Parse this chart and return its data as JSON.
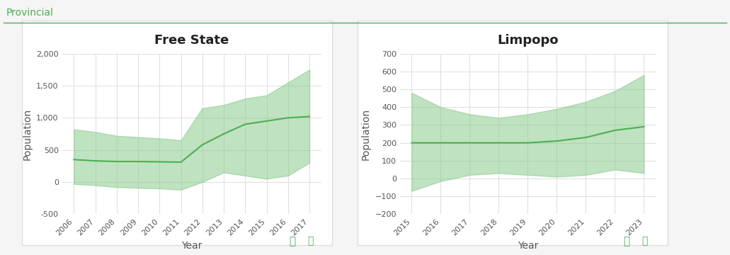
{
  "title_label": "Provincial",
  "title_color": "#4caf50",
  "background_color": "#f5f5f5",
  "panel_background": "#ffffff",
  "panel_border_color": "#dddddd",
  "chart1": {
    "title": "Free State",
    "xlabel": "Year",
    "ylabel": "Population",
    "years": [
      2006,
      2007,
      2008,
      2009,
      2010,
      2011,
      2012,
      2013,
      2014,
      2015,
      2016,
      2017
    ],
    "mean": [
      350,
      330,
      320,
      320,
      315,
      310,
      580,
      750,
      900,
      950,
      1000,
      1020
    ],
    "upper": [
      820,
      780,
      720,
      700,
      680,
      650,
      1150,
      1200,
      1300,
      1350,
      1550,
      1750
    ],
    "lower": [
      -30,
      -50,
      -80,
      -90,
      -100,
      -120,
      0,
      150,
      100,
      50,
      100,
      300
    ],
    "ylim": [
      -500,
      2000
    ],
    "yticks": [
      -500,
      0,
      500,
      1000,
      1500,
      2000
    ]
  },
  "chart2": {
    "title": "Limpopo",
    "xlabel": "Year",
    "ylabel": "Population",
    "years": [
      2015,
      2016,
      2017,
      2018,
      2019,
      2020,
      2021,
      2022,
      2023
    ],
    "mean": [
      200,
      200,
      200,
      200,
      200,
      210,
      230,
      270,
      290
    ],
    "upper": [
      480,
      400,
      360,
      340,
      360,
      390,
      430,
      490,
      580
    ],
    "lower": [
      -70,
      -15,
      20,
      30,
      20,
      10,
      20,
      50,
      30
    ],
    "ylim": [
      -200,
      700
    ],
    "yticks": [
      -200,
      -100,
      0,
      100,
      200,
      300,
      400,
      500,
      600,
      700
    ]
  },
  "fill_color": "#81c784",
  "fill_alpha": 0.5,
  "line_color": "#4caf50",
  "line_width": 1.5,
  "grid_color": "#e0e0e0",
  "tick_label_color": "#555555",
  "axis_label_color": "#555555",
  "title_fontsize": 13,
  "axis_label_fontsize": 10,
  "tick_fontsize": 8,
  "icon_color": "#4caf50"
}
